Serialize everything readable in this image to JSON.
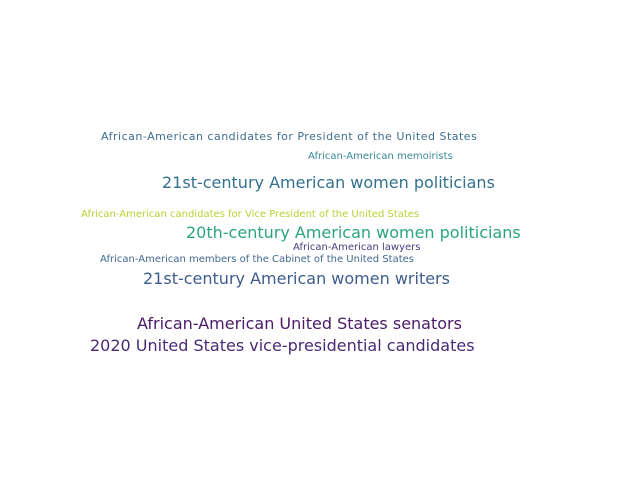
{
  "words": [
    {
      "text": "African-American candidates for President of the United States",
      "color": "#3e6e8e"
    },
    {
      "text": "African-American memoirists",
      "color": "#3a8a98"
    },
    {
      "text": "21st-century American women politicians",
      "color": "#33718d"
    },
    {
      "text": "African-American candidates for Vice President of the United States",
      "color": "#b5d335"
    },
    {
      "text": "20th-century American women politicians",
      "color": "#2aa57a"
    },
    {
      "text": "African-American lawyers",
      "color": "#4a3e7d"
    },
    {
      "text": "African-American members of the Cabinet of the United States",
      "color": "#41688f"
    },
    {
      "text": "21st-century American women writers",
      "color": "#3e5c8c"
    },
    {
      "text": "African-American United States senators",
      "color": "#4b1a69"
    },
    {
      "text": "2020 United States vice-presidential candidates",
      "color": "#4a2a72"
    }
  ]
}
